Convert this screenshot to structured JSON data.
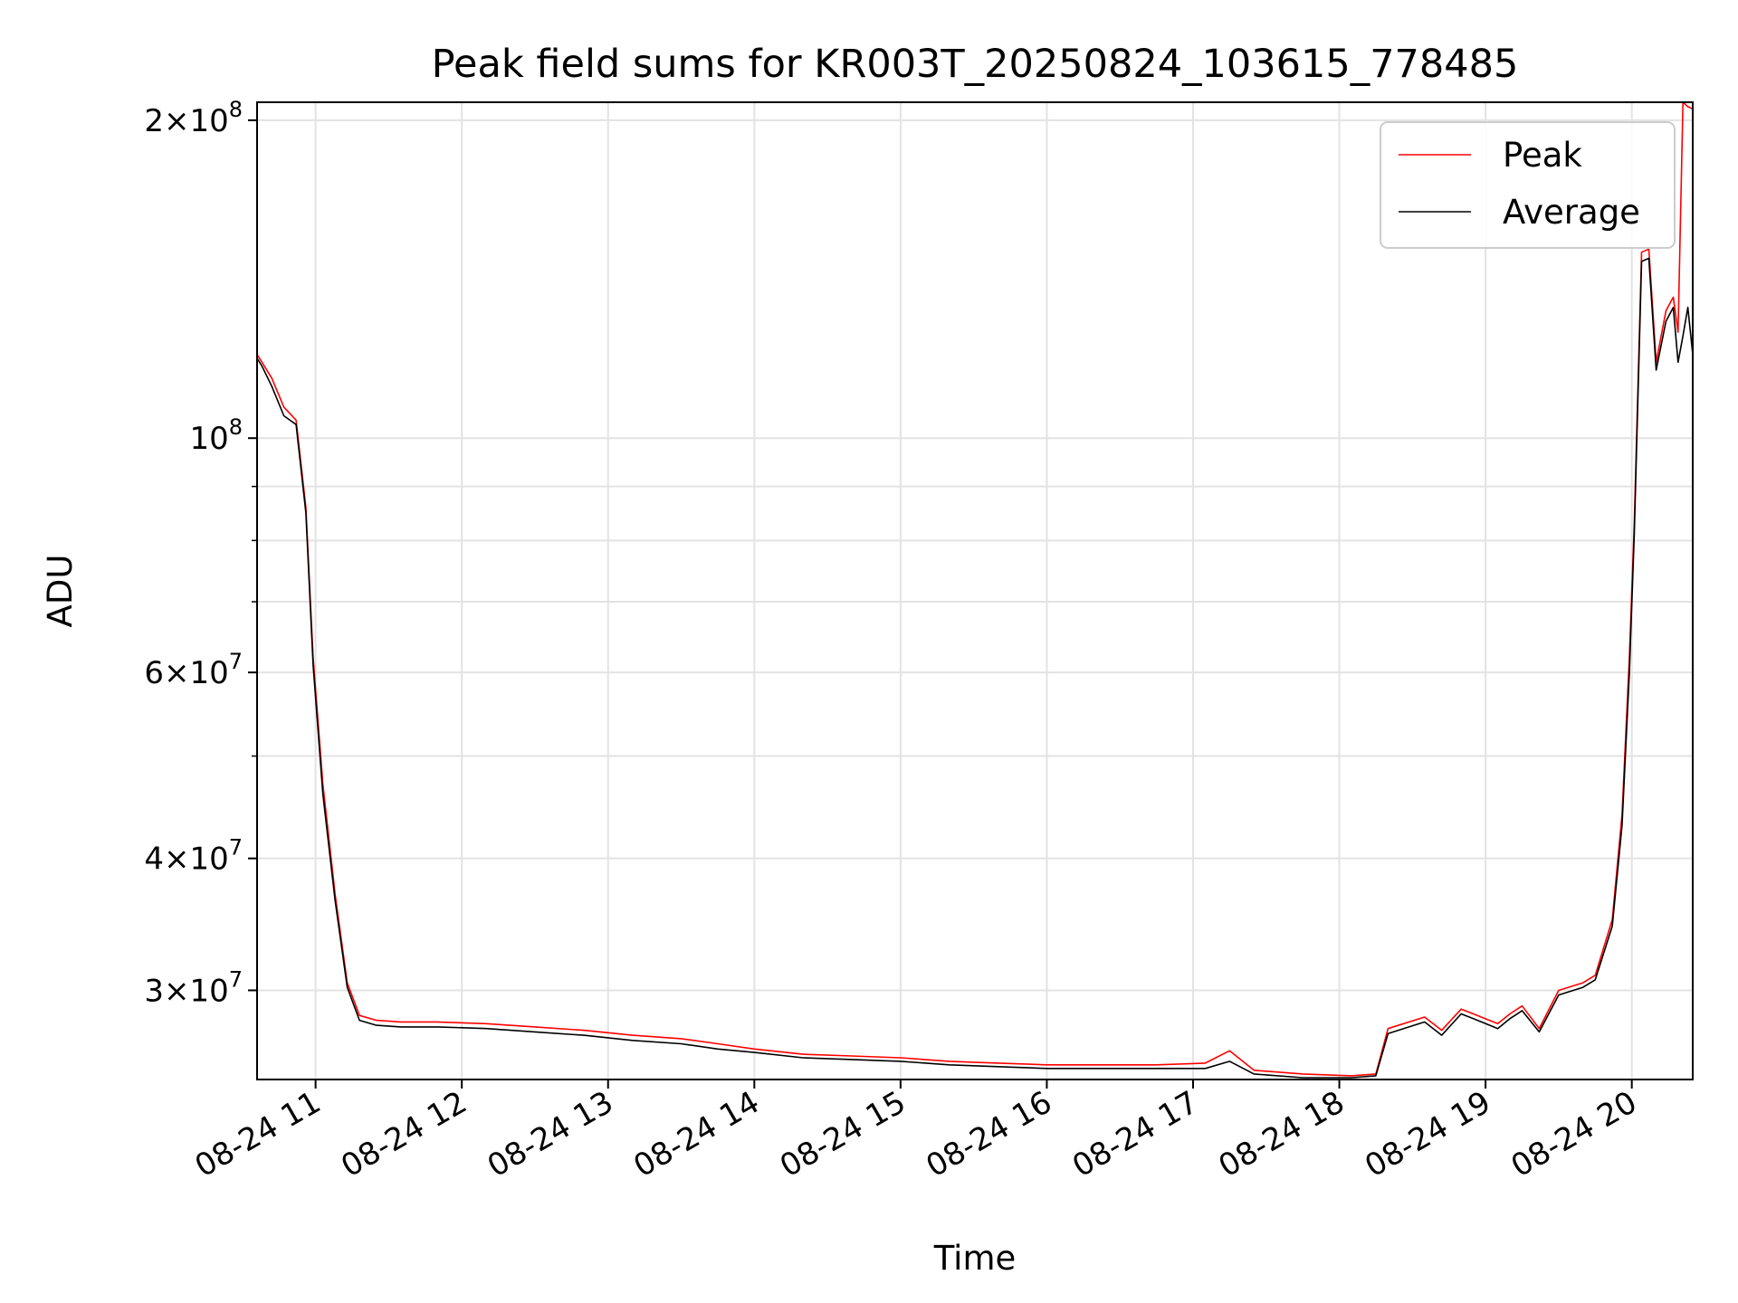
{
  "chart_data": {
    "type": "line",
    "title": "Peak field sums for KR003T_20250824_103615_778485",
    "xlabel": "Time",
    "ylabel": "ADU",
    "yscale": "log",
    "grid": true,
    "legend_position": "top-right",
    "xlim": [
      "2025-08-24 10:36",
      "2025-08-24 20:25"
    ],
    "ylim": [
      24700000,
      208000000
    ],
    "x_ticks": [
      {
        "label": "08-24 11",
        "value": "2025-08-24 11:00"
      },
      {
        "label": "08-24 12",
        "value": "2025-08-24 12:00"
      },
      {
        "label": "08-24 13",
        "value": "2025-08-24 13:00"
      },
      {
        "label": "08-24 14",
        "value": "2025-08-24 14:00"
      },
      {
        "label": "08-24 15",
        "value": "2025-08-24 15:00"
      },
      {
        "label": "08-24 16",
        "value": "2025-08-24 16:00"
      },
      {
        "label": "08-24 17",
        "value": "2025-08-24 17:00"
      },
      {
        "label": "08-24 18",
        "value": "2025-08-24 18:00"
      },
      {
        "label": "08-24 19",
        "value": "2025-08-24 19:00"
      },
      {
        "label": "08-24 20",
        "value": "2025-08-24 20:00"
      }
    ],
    "y_ticks_major": [
      {
        "mant": "2",
        "exp": "8",
        "value": 200000000
      },
      {
        "mant": "",
        "exp": "8",
        "value": 100000000
      },
      {
        "mant": "6",
        "exp": "7",
        "value": 60000000
      },
      {
        "mant": "4",
        "exp": "7",
        "value": 40000000
      },
      {
        "mant": "3",
        "exp": "7",
        "value": 30000000
      }
    ],
    "y_ticks_minor": [
      50000000,
      70000000,
      80000000,
      90000000
    ],
    "series": [
      {
        "name": "Peak",
        "color": "#ff0000",
        "x": [
          "2025-08-24 10:36",
          "2025-08-24 10:38",
          "2025-08-24 10:42",
          "2025-08-24 10:47",
          "2025-08-24 10:52",
          "2025-08-24 10:56",
          "2025-08-24 10:59",
          "2025-08-24 11:03",
          "2025-08-24 11:08",
          "2025-08-24 11:13",
          "2025-08-24 11:18",
          "2025-08-24 11:25",
          "2025-08-24 11:35",
          "2025-08-24 11:50",
          "2025-08-24 12:10",
          "2025-08-24 12:30",
          "2025-08-24 12:50",
          "2025-08-24 13:10",
          "2025-08-24 13:30",
          "2025-08-24 13:45",
          "2025-08-24 14:00",
          "2025-08-24 14:20",
          "2025-08-24 14:40",
          "2025-08-24 15:00",
          "2025-08-24 15:20",
          "2025-08-24 15:40",
          "2025-08-24 16:00",
          "2025-08-24 16:20",
          "2025-08-24 16:45",
          "2025-08-24 17:05",
          "2025-08-24 17:15",
          "2025-08-24 17:25",
          "2025-08-24 17:45",
          "2025-08-24 18:05",
          "2025-08-24 18:15",
          "2025-08-24 18:20",
          "2025-08-24 18:35",
          "2025-08-24 18:42",
          "2025-08-24 18:50",
          "2025-08-24 18:55",
          "2025-08-24 19:05",
          "2025-08-24 19:10",
          "2025-08-24 19:15",
          "2025-08-24 19:22",
          "2025-08-24 19:30",
          "2025-08-24 19:40",
          "2025-08-24 19:45",
          "2025-08-24 19:52",
          "2025-08-24 19:56",
          "2025-08-24 19:59",
          "2025-08-24 20:01",
          "2025-08-24 20:04",
          "2025-08-24 20:07",
          "2025-08-24 20:10",
          "2025-08-24 20:14",
          "2025-08-24 20:17",
          "2025-08-24 20:19",
          "2025-08-24 20:21",
          "2025-08-24 20:23",
          "2025-08-24 20:25"
        ],
        "y": [
          120000000,
          118000000,
          114000000,
          107000000,
          104000000,
          86000000,
          62000000,
          47000000,
          37000000,
          30500000,
          28400000,
          28100000,
          28000000,
          28000000,
          27900000,
          27700000,
          27500000,
          27200000,
          27000000,
          26700000,
          26400000,
          26100000,
          26000000,
          25900000,
          25700000,
          25600000,
          25500000,
          25500000,
          25500000,
          25600000,
          26300000,
          25200000,
          25000000,
          24900000,
          25000000,
          27600000,
          28300000,
          27500000,
          28800000,
          28500000,
          27900000,
          28500000,
          29000000,
          27600000,
          30000000,
          30500000,
          31000000,
          35000000,
          44000000,
          62000000,
          83000000,
          150000000,
          151000000,
          118000000,
          132000000,
          136000000,
          126000000,
          208000000,
          206000000,
          205000000
        ]
      },
      {
        "name": "Average",
        "color": "#000000",
        "x": [
          "2025-08-24 10:36",
          "2025-08-24 10:38",
          "2025-08-24 10:42",
          "2025-08-24 10:47",
          "2025-08-24 10:52",
          "2025-08-24 10:56",
          "2025-08-24 10:59",
          "2025-08-24 11:03",
          "2025-08-24 11:08",
          "2025-08-24 11:13",
          "2025-08-24 11:18",
          "2025-08-24 11:25",
          "2025-08-24 11:35",
          "2025-08-24 11:50",
          "2025-08-24 12:10",
          "2025-08-24 12:30",
          "2025-08-24 12:50",
          "2025-08-24 13:10",
          "2025-08-24 13:30",
          "2025-08-24 13:45",
          "2025-08-24 14:00",
          "2025-08-24 14:20",
          "2025-08-24 14:40",
          "2025-08-24 15:00",
          "2025-08-24 15:20",
          "2025-08-24 15:40",
          "2025-08-24 16:00",
          "2025-08-24 16:20",
          "2025-08-24 16:45",
          "2025-08-24 17:05",
          "2025-08-24 17:15",
          "2025-08-24 17:25",
          "2025-08-24 17:45",
          "2025-08-24 18:05",
          "2025-08-24 18:15",
          "2025-08-24 18:20",
          "2025-08-24 18:35",
          "2025-08-24 18:42",
          "2025-08-24 18:50",
          "2025-08-24 18:55",
          "2025-08-24 19:05",
          "2025-08-24 19:10",
          "2025-08-24 19:15",
          "2025-08-24 19:22",
          "2025-08-24 19:30",
          "2025-08-24 19:40",
          "2025-08-24 19:45",
          "2025-08-24 19:52",
          "2025-08-24 19:56",
          "2025-08-24 19:59",
          "2025-08-24 20:01",
          "2025-08-24 20:04",
          "2025-08-24 20:07",
          "2025-08-24 20:10",
          "2025-08-24 20:14",
          "2025-08-24 20:17",
          "2025-08-24 20:19",
          "2025-08-24 20:21",
          "2025-08-24 20:23",
          "2025-08-24 20:25"
        ],
        "y": [
          119000000,
          117000000,
          112000000,
          105000000,
          103000000,
          85000000,
          61000000,
          46000000,
          36500000,
          30200000,
          28100000,
          27800000,
          27700000,
          27700000,
          27600000,
          27400000,
          27200000,
          26900000,
          26700000,
          26400000,
          26200000,
          25900000,
          25800000,
          25700000,
          25500000,
          25400000,
          25300000,
          25300000,
          25300000,
          25300000,
          25700000,
          25000000,
          24800000,
          24800000,
          24900000,
          27300000,
          28000000,
          27200000,
          28500000,
          28200000,
          27600000,
          28200000,
          28700000,
          27400000,
          29700000,
          30200000,
          30700000,
          34500000,
          43000000,
          60000000,
          81000000,
          147000000,
          148000000,
          116000000,
          129000000,
          133000000,
          118000000,
          125000000,
          133000000,
          120000000
        ]
      }
    ]
  }
}
